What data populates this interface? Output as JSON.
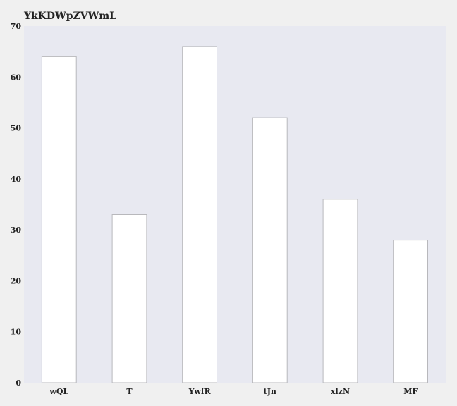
{
  "colors": {
    "page_background": "#f0f0f0",
    "plot_background": "#e8e9f1",
    "bar_fill": "#ffffff",
    "bar_stroke": "#b8b8bc",
    "text": "#222222"
  },
  "chart_data": {
    "type": "bar",
    "title": "YkKDWpZVWmL",
    "xlabel": "",
    "ylabel": "",
    "categories": [
      "wQL",
      "T",
      "YwfR",
      "tJn",
      "xlzN",
      "MF"
    ],
    "values": [
      64,
      33,
      66,
      52,
      36,
      28
    ],
    "ylim": [
      0,
      70
    ],
    "yticks": [
      "0",
      "10",
      "20",
      "30",
      "40",
      "50",
      "60",
      "70"
    ],
    "grid": false,
    "legend": "none"
  }
}
